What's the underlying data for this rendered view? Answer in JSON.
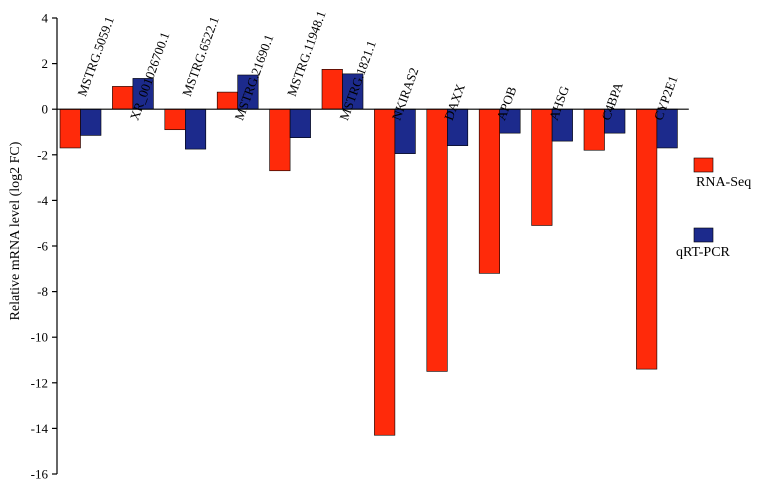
{
  "chart_data": {
    "type": "bar",
    "title": "",
    "xlabel": "",
    "ylabel": "Relative mRNA level (log2 FC)",
    "ylim": [
      -16,
      4
    ],
    "yticks": [
      4,
      2,
      0,
      -2,
      -4,
      -6,
      -8,
      -10,
      -12,
      -14,
      -16
    ],
    "grid": false,
    "legend_position": "right",
    "categories": [
      "MSTRG.5059.1",
      "XR_001026700.1",
      "MSTRG.6522.1",
      "MSTRG.21690.1",
      "MSTRG.11948.1",
      "MSTRG.1821.1",
      "NKIRAS2",
      "DAXX",
      "APOB",
      "AHSG",
      "C4BPA",
      "CYP2E1"
    ],
    "series": [
      {
        "name": "RNA-Seq",
        "color": "#ff2a0a",
        "values": [
          -1.7,
          1.0,
          -0.9,
          0.75,
          -2.7,
          1.75,
          -14.3,
          -11.5,
          -7.2,
          -5.1,
          -1.8,
          -11.4
        ]
      },
      {
        "name": "qRT-PCR",
        "color": "#1c2a8c",
        "values": [
          -1.15,
          1.35,
          -1.75,
          1.5,
          -1.25,
          1.55,
          -1.95,
          -1.6,
          -1.05,
          -1.4,
          -1.05,
          -1.7
        ]
      }
    ]
  }
}
